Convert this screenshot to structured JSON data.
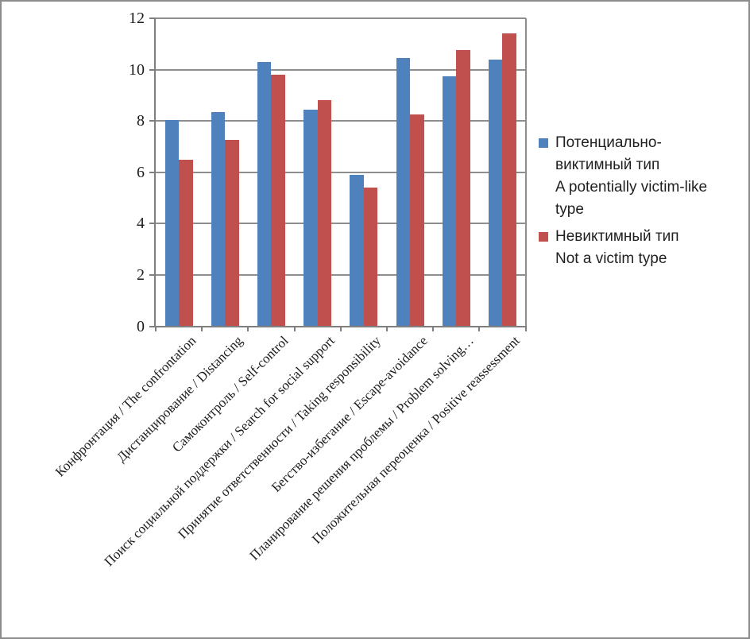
{
  "chart_data": {
    "type": "bar",
    "title": "",
    "categories": [
      "Конфронтация / The confrontation",
      "Дистанцирование / Distancing",
      "Самоконтроль / Self-control",
      "Поиск социальной поддержки / Search for social support",
      "Принятие ответственности / Taking responsibility",
      "Бегство-избегание / Escape-avoidance",
      "Планирование решения проблемы / Problem solving…",
      "Положительная переоценка / Positive reassessment"
    ],
    "series": [
      {
        "name": "Потенциально-\nвиктимный тип\nA potentially victim-like\ntype",
        "color": "#4F81BD",
        "values": [
          8.05,
          8.35,
          10.3,
          8.45,
          5.9,
          10.45,
          9.75,
          10.4
        ]
      },
      {
        "name": "Невиктимный тип\nNot a victim type",
        "color": "#C0504D",
        "values": [
          6.5,
          7.25,
          9.8,
          8.8,
          5.4,
          8.25,
          10.75,
          11.4
        ]
      }
    ],
    "ylim": [
      0,
      12
    ],
    "yticks": [
      0,
      2,
      4,
      6,
      8,
      10,
      12
    ],
    "grid": "horizontal-major",
    "legend_position": "right"
  },
  "colors": {
    "gridline": "#8E8E8E",
    "axis_line": "#7F7F7F",
    "axis_text": "#1D1D1D",
    "frame_border": "#8C8C8C",
    "background": "#FFFFFF"
  }
}
